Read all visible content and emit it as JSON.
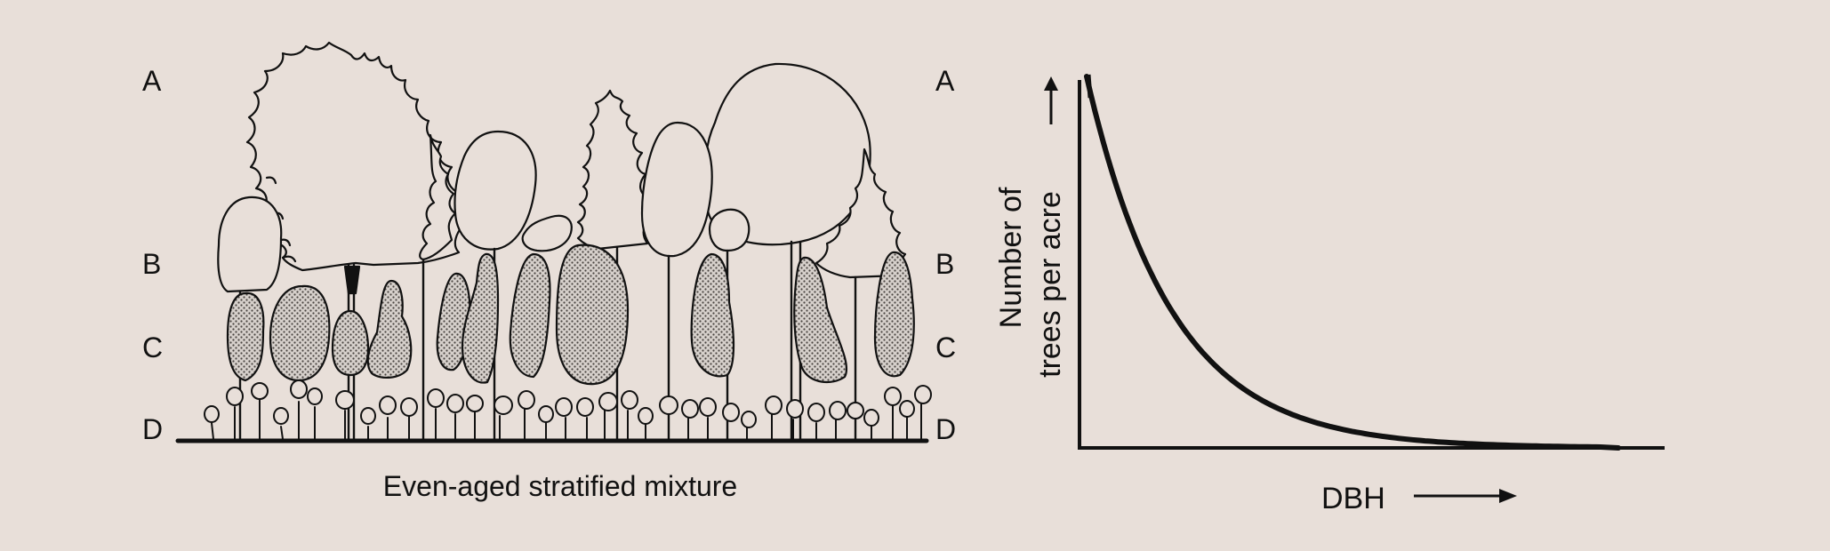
{
  "stratum_labels_left": [
    "A",
    "B",
    "C",
    "D"
  ],
  "stratum_labels_right": [
    "A",
    "B",
    "C",
    "D"
  ],
  "diagram_caption": "Even-aged stratified mixture",
  "chart_data": {
    "type": "line",
    "title": "",
    "ylabel_line1": "Number of",
    "ylabel_line2": "trees per acre",
    "xlabel": "DBH",
    "grid": false,
    "legend": "none",
    "curve": "reverse-J",
    "colors": {
      "ink": "#111111",
      "background": "#e8dfd9",
      "stipple": "#9a948f"
    }
  }
}
